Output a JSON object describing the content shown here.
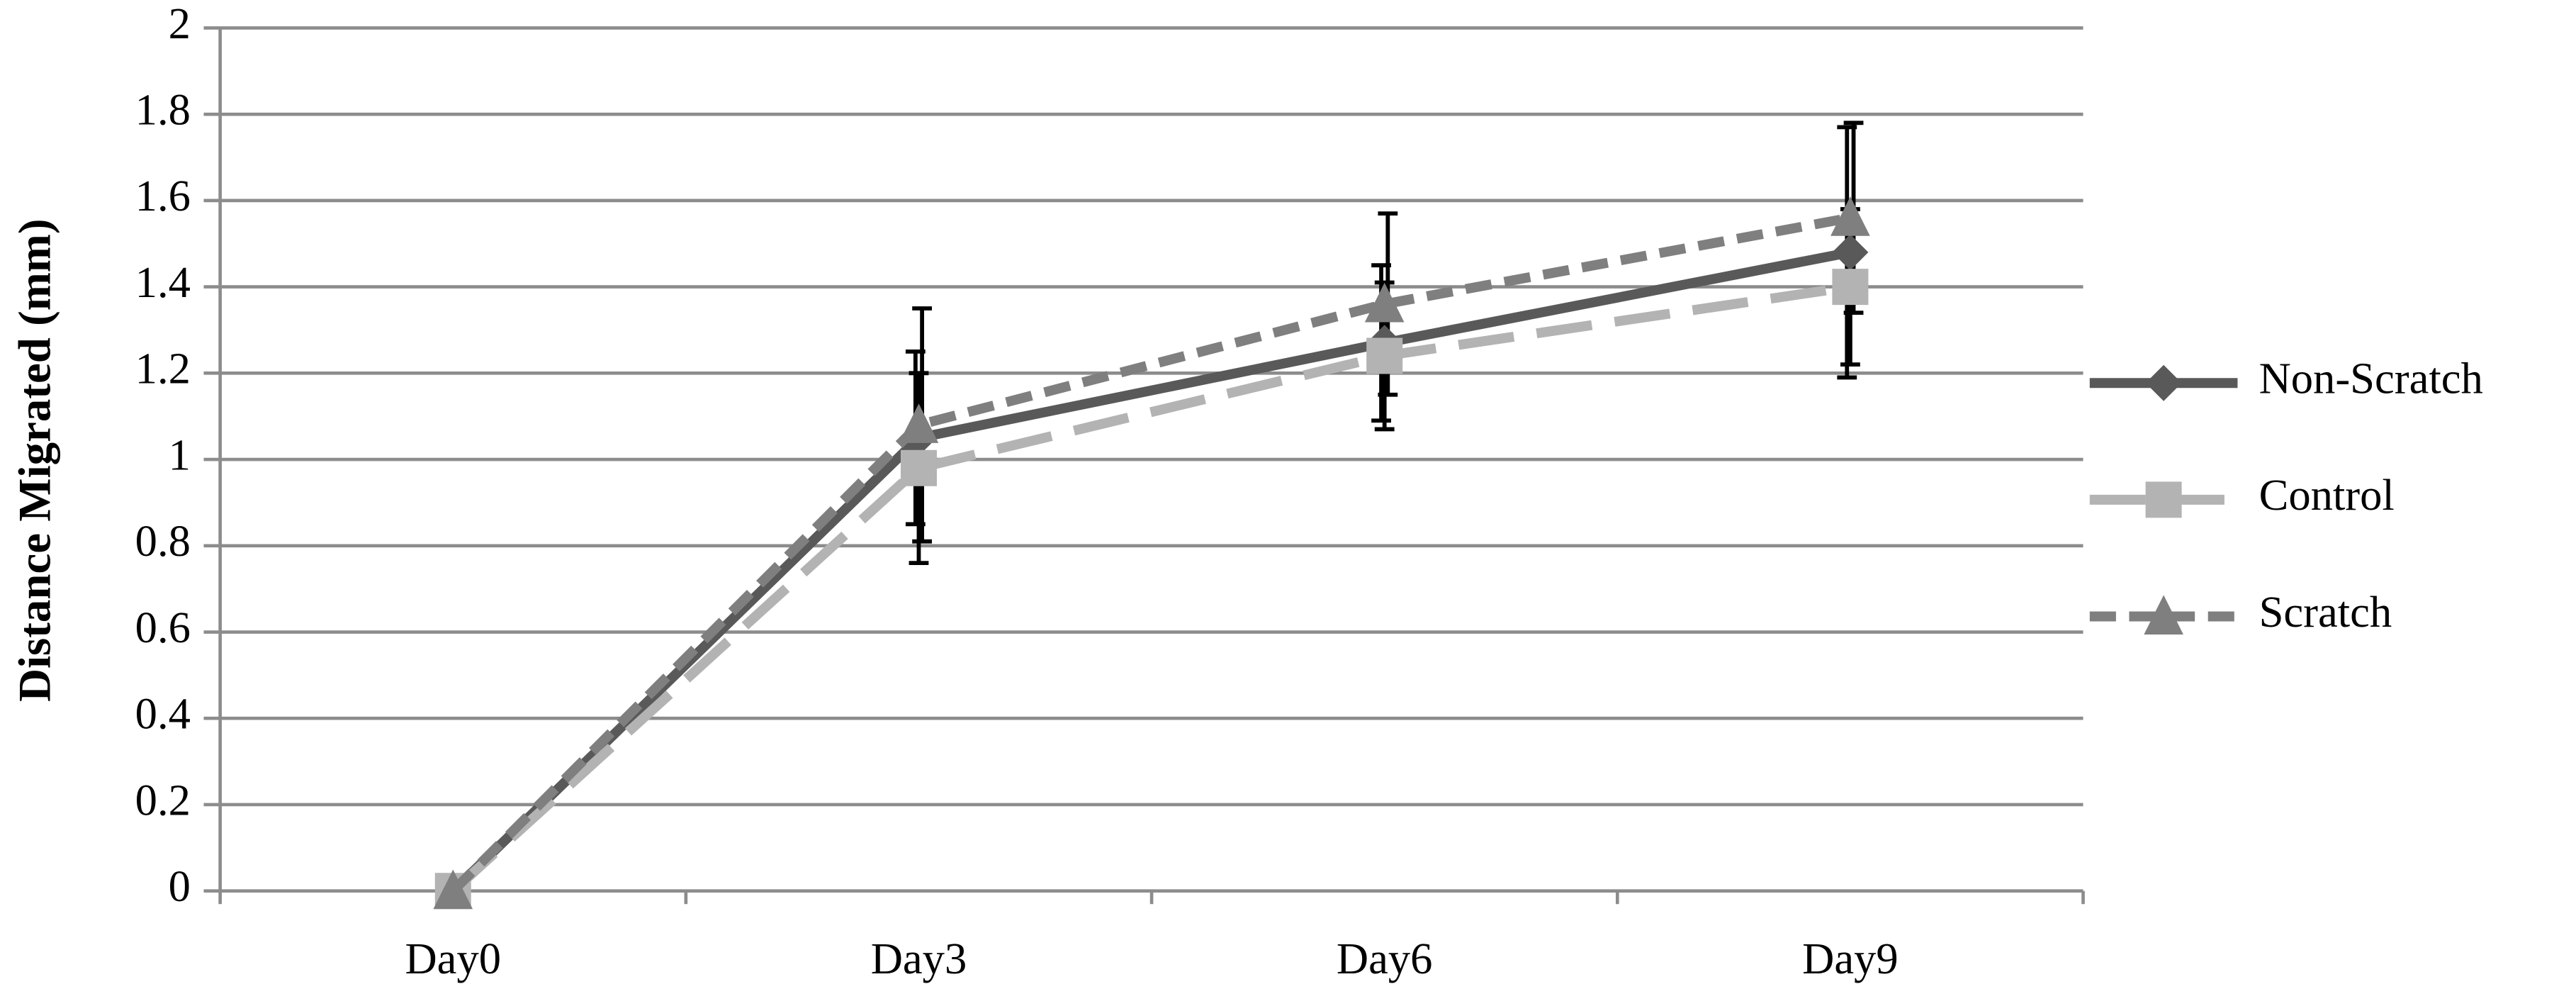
{
  "chart_data": {
    "type": "line",
    "y_label": "Distance Migrated (mm)",
    "categories": [
      "Day0",
      "Day3",
      "Day6",
      "Day9"
    ],
    "ylim": [
      0,
      2
    ],
    "yticks": [
      0,
      0.2,
      0.4,
      0.6,
      0.8,
      1,
      1.2,
      1.4,
      1.6,
      1.8,
      2
    ],
    "grid": true,
    "legend": "right",
    "series": [
      {
        "name": "Non-Scratch",
        "color": "#595959",
        "dash": "solid",
        "marker": "diamond",
        "values": [
          0,
          1.05,
          1.27,
          1.48
        ],
        "errors": [
          null,
          0.2,
          0.18,
          0.29
        ]
      },
      {
        "name": "Control",
        "color": "#b3b3b3",
        "dash": "long-dash",
        "marker": "square",
        "values": [
          0,
          0.98,
          1.24,
          1.4
        ],
        "errors": [
          null,
          0.22,
          0.17,
          0.18
        ]
      },
      {
        "name": "Scratch",
        "color": "#7f7f7f",
        "dash": "dash",
        "marker": "triangle",
        "values": [
          0,
          1.08,
          1.36,
          1.56
        ],
        "errors": [
          null,
          0.27,
          0.21,
          0.22
        ]
      }
    ]
  }
}
